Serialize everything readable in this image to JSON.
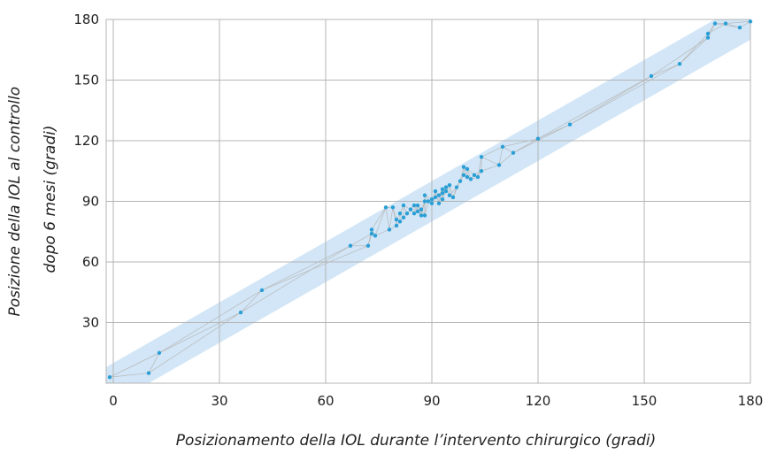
{
  "chart_data": {
    "type": "scatter",
    "xlabel": "Posizionamento della IOL durante l’intervento chirurgico (gradi)",
    "ylabel_lines": [
      "Posizione della IOL al controllo",
      "dopo 6 mesi (gradi)"
    ],
    "xlim": [
      -2,
      180
    ],
    "ylim": [
      0,
      180
    ],
    "x_ticks": [
      0,
      30,
      60,
      90,
      120,
      150,
      180
    ],
    "y_ticks": [
      30,
      60,
      90,
      120,
      150,
      180
    ],
    "grid": true,
    "tolerance_band_degrees": 10,
    "points": [
      [
        -1,
        3
      ],
      [
        10,
        5
      ],
      [
        13,
        15
      ],
      [
        36,
        35
      ],
      [
        42,
        46
      ],
      [
        67,
        68
      ],
      [
        72,
        68
      ],
      [
        73,
        74
      ],
      [
        73,
        76
      ],
      [
        74,
        73
      ],
      [
        77,
        87
      ],
      [
        78,
        76
      ],
      [
        79,
        87
      ],
      [
        80,
        78
      ],
      [
        80,
        81
      ],
      [
        81,
        80
      ],
      [
        81,
        84
      ],
      [
        82,
        82
      ],
      [
        82,
        88
      ],
      [
        83,
        84
      ],
      [
        84,
        86
      ],
      [
        85,
        88
      ],
      [
        85,
        84
      ],
      [
        86,
        85
      ],
      [
        86,
        88
      ],
      [
        87,
        83
      ],
      [
        87,
        86
      ],
      [
        88,
        90
      ],
      [
        88,
        83
      ],
      [
        88,
        93
      ],
      [
        89,
        90
      ],
      [
        90,
        91
      ],
      [
        90,
        89
      ],
      [
        91,
        92
      ],
      [
        91,
        95
      ],
      [
        92,
        93
      ],
      [
        92,
        89
      ],
      [
        93,
        96
      ],
      [
        93,
        91
      ],
      [
        93,
        94
      ],
      [
        94,
        95
      ],
      [
        94,
        97
      ],
      [
        95,
        98
      ],
      [
        95,
        93
      ],
      [
        96,
        92
      ],
      [
        97,
        97
      ],
      [
        98,
        100
      ],
      [
        99,
        103
      ],
      [
        99,
        107
      ],
      [
        100,
        102
      ],
      [
        100,
        106
      ],
      [
        101,
        101
      ],
      [
        102,
        103
      ],
      [
        103,
        102
      ],
      [
        104,
        105
      ],
      [
        104,
        112
      ],
      [
        109,
        108
      ],
      [
        110,
        117
      ],
      [
        113,
        114
      ],
      [
        120,
        121
      ],
      [
        129,
        128
      ],
      [
        152,
        152
      ],
      [
        160,
        158
      ],
      [
        168,
        171
      ],
      [
        168,
        173
      ],
      [
        170,
        178
      ],
      [
        173,
        178
      ],
      [
        177,
        176
      ],
      [
        180,
        179
      ]
    ],
    "colors": {
      "point": "#2a9fd6",
      "band": "#d2e6f7",
      "grid": "#b4b4b4",
      "connector": "#b8b8b8"
    }
  }
}
